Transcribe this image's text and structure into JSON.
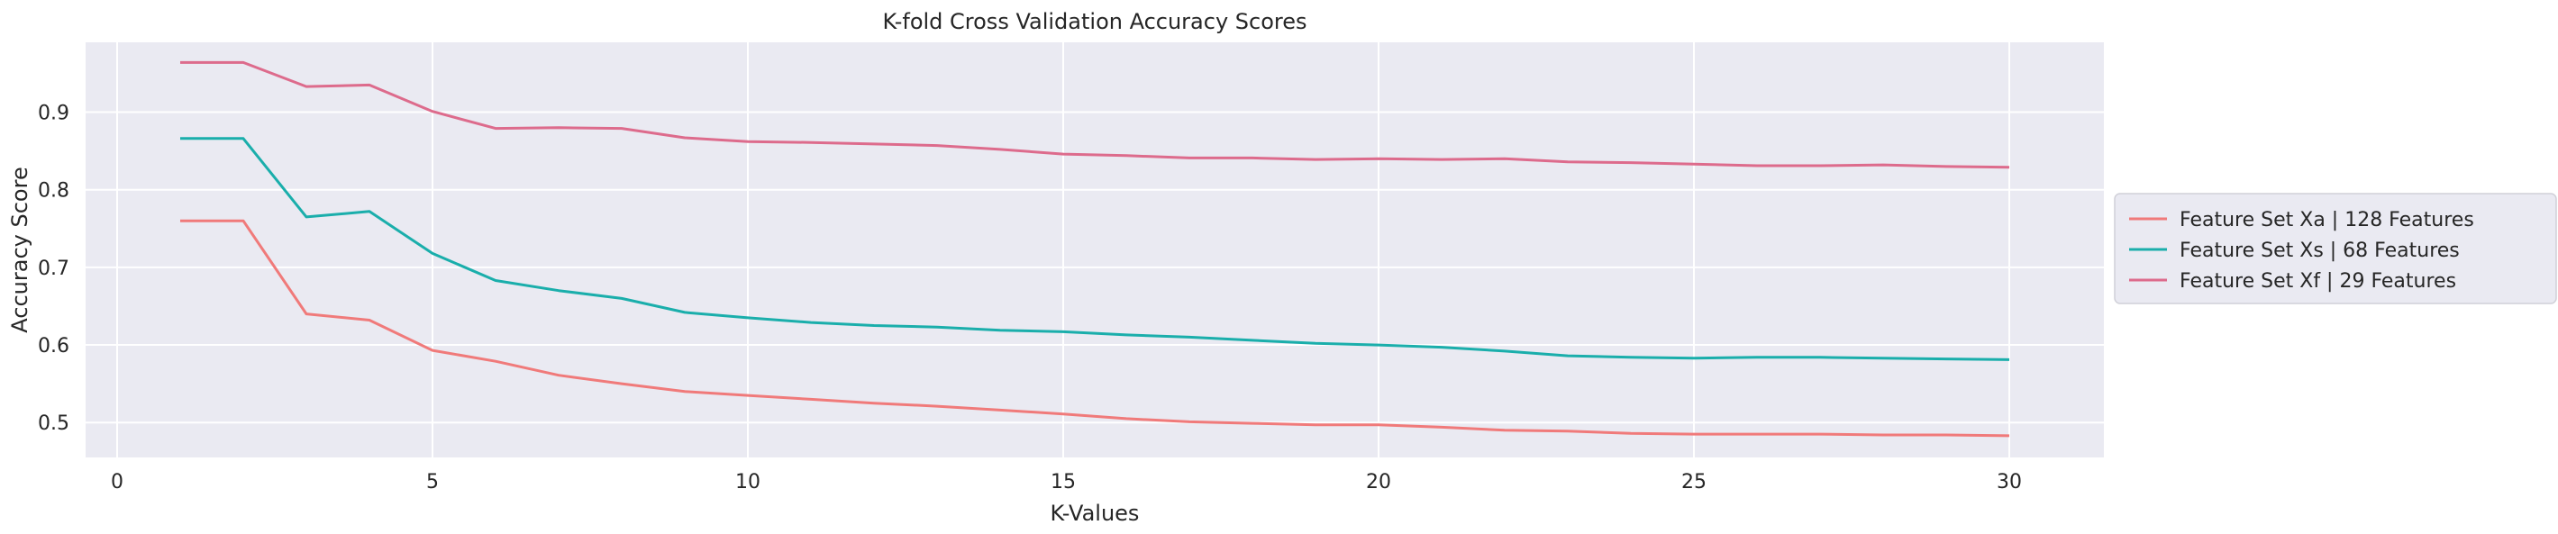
{
  "chart_data": {
    "type": "line",
    "title": "K-fold Cross Validation Accuracy Scores",
    "xlabel": "K-Values",
    "ylabel": "Accuracy Score",
    "xlim": [
      -0.5,
      31.5
    ],
    "ylim": [
      0.455,
      0.99
    ],
    "xticks": [
      0,
      5,
      10,
      15,
      20,
      25,
      30
    ],
    "yticks": [
      0.5,
      0.6,
      0.7,
      0.8,
      0.9
    ],
    "grid": true,
    "legend_position": "center-right outside",
    "x": [
      1,
      2,
      3,
      4,
      5,
      6,
      7,
      8,
      9,
      10,
      11,
      12,
      13,
      14,
      15,
      16,
      17,
      18,
      19,
      20,
      21,
      22,
      23,
      24,
      25,
      26,
      27,
      28,
      29,
      30
    ],
    "series": [
      {
        "name": "Feature Set Xa | 128 Features",
        "color": "#f07a7a",
        "values": [
          0.76,
          0.76,
          0.64,
          0.632,
          0.593,
          0.579,
          0.561,
          0.55,
          0.54,
          0.535,
          0.53,
          0.525,
          0.521,
          0.516,
          0.511,
          0.505,
          0.501,
          0.499,
          0.497,
          0.497,
          0.494,
          0.49,
          0.489,
          0.486,
          0.485,
          0.485,
          0.485,
          0.484,
          0.484,
          0.483
        ]
      },
      {
        "name": "Feature Set Xs | 68 Features",
        "color": "#1aaeab",
        "values": [
          0.866,
          0.866,
          0.765,
          0.772,
          0.718,
          0.683,
          0.67,
          0.66,
          0.642,
          0.635,
          0.629,
          0.625,
          0.623,
          0.619,
          0.617,
          0.613,
          0.61,
          0.606,
          0.602,
          0.6,
          0.597,
          0.592,
          0.586,
          0.584,
          0.583,
          0.584,
          0.584,
          0.583,
          0.582,
          0.581
        ]
      },
      {
        "name": "Feature Set Xf | 29 Features",
        "color": "#dd6b8c",
        "values": [
          0.964,
          0.964,
          0.933,
          0.935,
          0.901,
          0.879,
          0.88,
          0.879,
          0.867,
          0.862,
          0.861,
          0.859,
          0.857,
          0.852,
          0.846,
          0.844,
          0.841,
          0.841,
          0.839,
          0.84,
          0.839,
          0.84,
          0.836,
          0.835,
          0.833,
          0.831,
          0.831,
          0.832,
          0.83,
          0.829
        ]
      }
    ]
  }
}
